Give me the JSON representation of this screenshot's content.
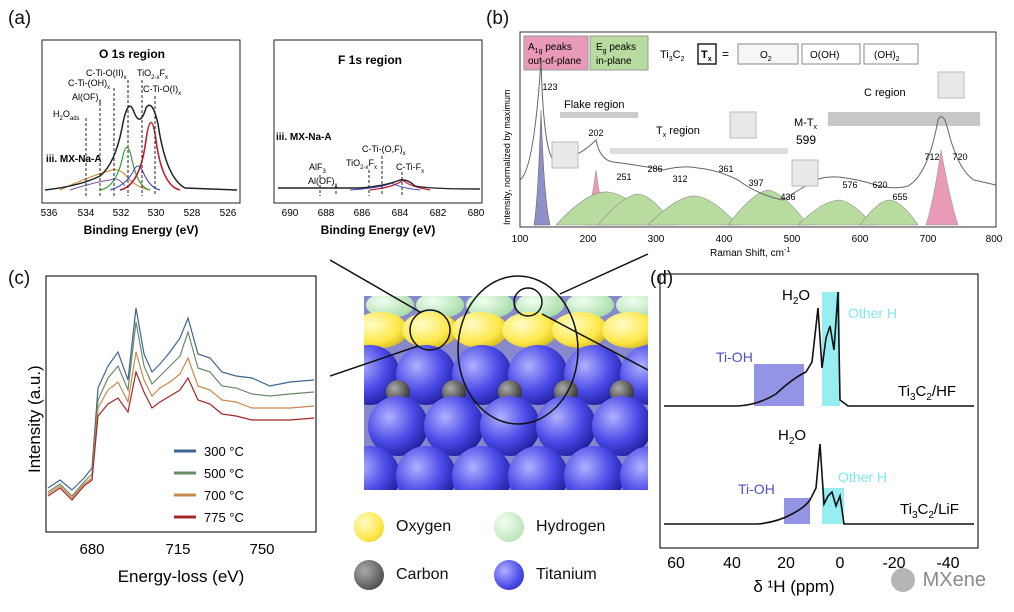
{
  "panels": {
    "a": "(a)",
    "b": "(b)",
    "c": "(c)",
    "d": "(d)"
  },
  "panel_a": {
    "o1s": {
      "title": "O 1s region",
      "sample": "iii. MX-Na-A",
      "xlabel": "Binding Energy (eV)",
      "ticks": [
        "536",
        "534",
        "532",
        "530",
        "528",
        "526"
      ],
      "labels": {
        "cti_o_ii": "C-Ti-O(II)",
        "cti_o_ii_sub": "x",
        "tio2": "TiO",
        "tio2_sub": "2-x",
        "tio2_f": "F",
        "tio2_fsub": "x",
        "cti_oh": "C-Ti-(OH)",
        "cti_oh_sub": "x",
        "alof": "Al(OF)",
        "alof_sub": "x",
        "h2o": "H",
        "h2o_sub1": "2",
        "h2o_o": "O",
        "h2o_sub2": "ads",
        "cti_o_i": "C-Ti-O(I)",
        "cti_o_i_sub": "x"
      }
    },
    "f1s": {
      "title": "F 1s region",
      "sample": "iii. MX-Na-A",
      "xlabel": "Binding Energy (eV)",
      "ticks": [
        "690",
        "688",
        "686",
        "684",
        "682",
        "680"
      ],
      "labels": {
        "alf3": "AlF",
        "alf3_sub": "3",
        "alof": "Al(OF)",
        "alof_sub": "x",
        "tio2": "TiO",
        "tio2_sub": "2-x",
        "tio2_f": "F",
        "tio2_fsub": "x",
        "cti_of": "C-Ti-(O,F)",
        "cti_of_sub": "x",
        "cti_f": "C-Ti-F",
        "cti_f_sub": "x"
      }
    }
  },
  "panel_b": {
    "ylabel": "Intensity, normalized by maximum",
    "xlabel": "Raman Shift, cm",
    "xlabel_sup": "-1",
    "ticks": [
      "100",
      "200",
      "300",
      "400",
      "500",
      "600",
      "700",
      "800"
    ],
    "legend": {
      "a1g": "A",
      "a1g_sub": "1g",
      "a1g_rest": " peaks",
      "a1g_line2": "out-of-plane",
      "eg": "E",
      "eg_sub": "g",
      "eg_rest": " peaks",
      "eg_line2": "in-plane",
      "formula": "Ti",
      "formula_sub1": "3",
      "formula_c": "C",
      "formula_sub2": "2",
      "tx": "T",
      "tx_sub": "x",
      "eq": "=",
      "o2": "O",
      "o2_sub": "2",
      "ooh": "O(OH)",
      "oh2": "(OH)",
      "oh2_sub": "2"
    },
    "regions": {
      "flake": "Flake region",
      "tx": "T",
      "tx_sub": "x",
      "tx_rest": " region",
      "mtx": "M-T",
      "mtx_sub": "x",
      "c": "C region"
    },
    "peaks": [
      "123",
      "202",
      "251",
      "286",
      "312",
      "361",
      "397",
      "436",
      "599",
      "576",
      "620",
      "655",
      "712",
      "720"
    ]
  },
  "panel_c": {
    "ylabel": "Intensity (a.u.)",
    "xlabel": "Energy-loss (eV)",
    "ticks": [
      "680",
      "715",
      "750"
    ],
    "legend": [
      {
        "label": "300 °C",
        "color": "#3d6690"
      },
      {
        "label": "500 °C",
        "color": "#6a8a6a"
      },
      {
        "label": "700 °C",
        "color": "#c88a50"
      },
      {
        "label": "775 °C",
        "color": "#a52828"
      }
    ]
  },
  "atoms_legend": [
    {
      "label": "Oxygen",
      "color": "#ffee55"
    },
    {
      "label": "Hydrogen",
      "color": "#c8f0c8"
    },
    {
      "label": "Carbon",
      "color": "#555555"
    },
    {
      "label": "Titanium",
      "color": "#4a4ae8"
    }
  ],
  "panel_d": {
    "xlabel": "δ ¹H (ppm)",
    "ticks": [
      "60",
      "40",
      "20",
      "0",
      "-20",
      "-40"
    ],
    "top": {
      "h2o": "H",
      "h2o_sub": "2",
      "h2o_o": "O",
      "tioh": "Ti-OH",
      "other": "Other H",
      "sample": "Ti",
      "sample_sub1": "3",
      "sample_c": "C",
      "sample_sub2": "2",
      "sample_rest": "/HF"
    },
    "bottom": {
      "h2o": "H",
      "h2o_sub": "2",
      "h2o_o": "O",
      "tioh": "Ti-OH",
      "other": "Other H",
      "sample": "Ti",
      "sample_sub1": "3",
      "sample_c": "C",
      "sample_sub2": "2",
      "sample_rest": "/LiF"
    }
  },
  "watermark": "MXene",
  "colors": {
    "a1g_fill": "#e89ab8",
    "eg_fill": "#b8dca0",
    "cyan": "#7ee8ee",
    "blue_box": "#7070dd"
  }
}
